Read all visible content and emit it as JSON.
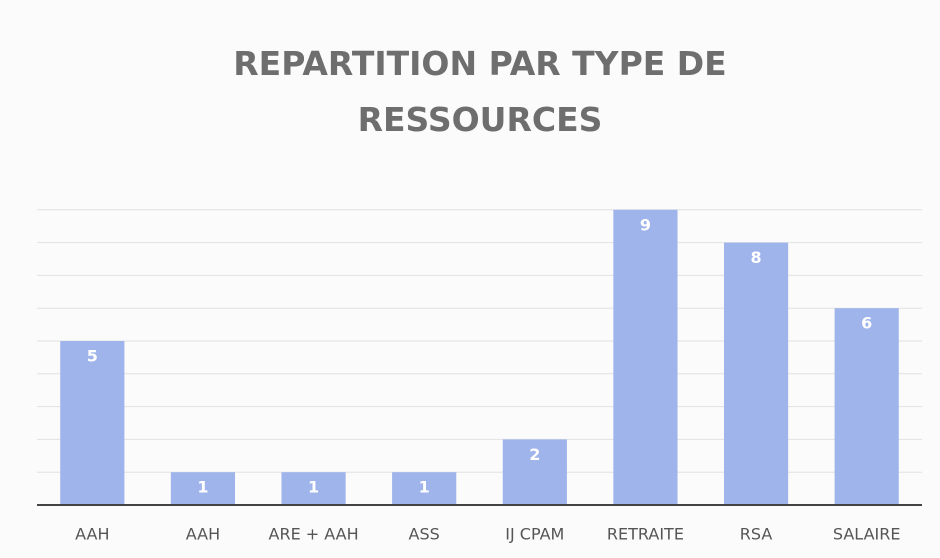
{
  "chart_data": {
    "type": "bar",
    "title": "REPARTITION PAR TYPE DE RESSOURCES",
    "categories": [
      "AAH",
      "AAH",
      "ARE + AAH",
      "ASS",
      "IJ CPAM",
      "RETRAITE",
      "RSA",
      "SALAIRE"
    ],
    "values": [
      5,
      1,
      1,
      1,
      2,
      9,
      8,
      6
    ],
    "color": "#9fb4ea",
    "ylim": [
      0,
      10
    ],
    "yticks": [
      0,
      1,
      2,
      3,
      4,
      5,
      6,
      7,
      8,
      9
    ],
    "grid": true
  }
}
